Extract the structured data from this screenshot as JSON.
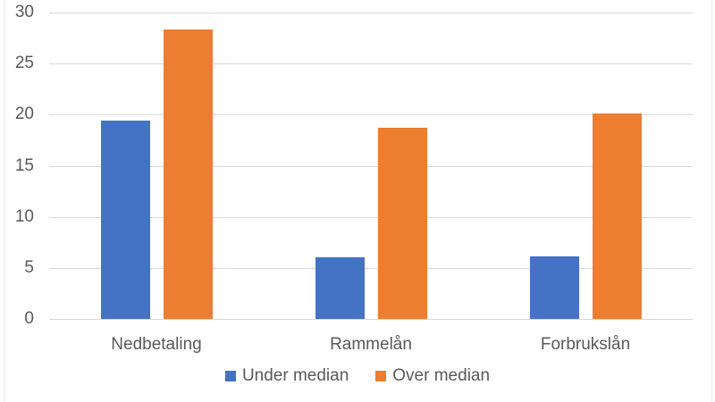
{
  "chart_data": {
    "type": "bar",
    "title": "",
    "xlabel": "",
    "ylabel": "",
    "categories": [
      "Nedbetaling",
      "Rammelån",
      "Forbrukslån"
    ],
    "series": [
      {
        "name": "Under median",
        "color": "#4472C4",
        "values": [
          19.4,
          6.0,
          6.1
        ]
      },
      {
        "name": "Over median",
        "color": "#ED7D31",
        "values": [
          28.3,
          18.7,
          20.1
        ]
      }
    ],
    "ylim": [
      0,
      30
    ],
    "yticks": [
      0,
      5,
      10,
      15,
      20,
      25,
      30
    ],
    "grid": true,
    "legend_position": "bottom"
  },
  "colors": {
    "series_under_median": "#4472C4",
    "series_over_median": "#ED7D31",
    "gridline": "#D9D9D9",
    "axis_baseline": "#D9D9D9",
    "axis_text": "#595959",
    "frame_border": "#E8E8E8",
    "background": "#FFFFFF"
  }
}
